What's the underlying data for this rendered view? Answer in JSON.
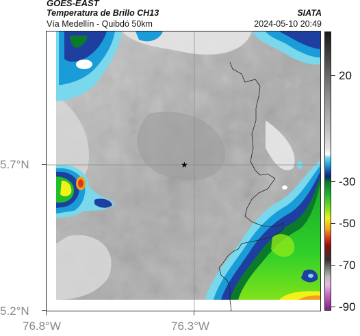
{
  "header": {
    "title": "GOES-EAST",
    "subtitle": "Temperatura de Brillo CH13",
    "organization": "SIATA",
    "route": "Vía Medellín - Quibdó 50km",
    "timestamp": "2024-05-10 20:49"
  },
  "map": {
    "y_axis_labels": [
      "5.7°N",
      "5.2°N"
    ],
    "x_axis_labels": [
      "76.8°W",
      "76.3°W"
    ],
    "marker_icon": "star-icon"
  },
  "colorbar": {
    "labels": [
      "20",
      "-30",
      "-50",
      "-70",
      "-90"
    ],
    "colors": {
      "warm_gray": "#9a9a9a",
      "light_cyan": "#6fe0f0",
      "blue": "#1a9cd8",
      "dark_blue": "#1f3fa0",
      "green": "#1fbf2a",
      "yellow": "#f2f21a",
      "red": "#d83a1a",
      "magenta": "#c060c0"
    }
  }
}
